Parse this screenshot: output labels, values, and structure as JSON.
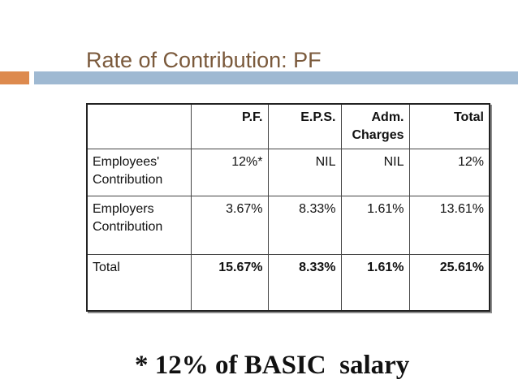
{
  "slide": {
    "title": "Rate of Contribution: PF",
    "footnote": "* 12% of BASIC  salary"
  },
  "table": {
    "headers": [
      "",
      "P.F.",
      "E.P.S.",
      "Adm.\nCharges",
      "Total"
    ],
    "rows": [
      {
        "label": "Employees'\nContribution",
        "pf": "12%*",
        "eps": "NIL",
        "adm": "NIL",
        "total": "12%"
      },
      {
        "label": "Employers\nContribution",
        "pf": "3.67%",
        "eps": "8.33%",
        "adm": "1.61%",
        "total": "13.61%"
      },
      {
        "label": "Total",
        "pf": "15.67%",
        "eps": "8.33%",
        "adm": "1.61%",
        "total": "25.61%"
      }
    ]
  },
  "colors": {
    "title": "#7b5a3c",
    "accent_orange": "#dd8a4e",
    "accent_blue": "#9fb9d2"
  }
}
